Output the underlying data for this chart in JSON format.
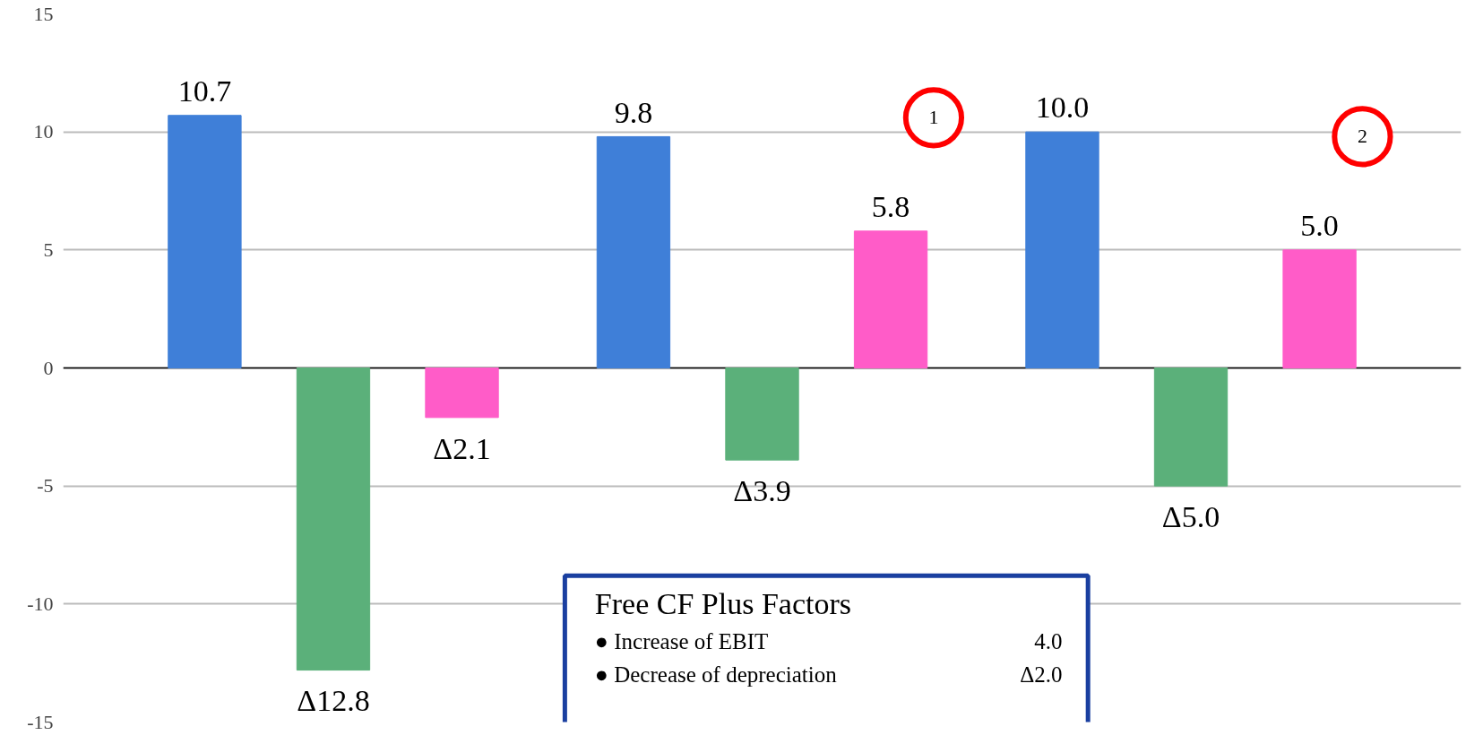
{
  "chart_data": {
    "type": "bar",
    "categories": [
      null,
      null,
      null
    ],
    "series": [
      {
        "color": "#3f7fd8",
        "values": [
          10.7,
          9.8,
          10.0
        ],
        "value_labels": [
          "10.7",
          "9.8",
          "10.0"
        ]
      },
      {
        "color": "#5bb07a",
        "values": [
          -12.8,
          -3.9,
          -5.0
        ],
        "value_labels": [
          "Δ12.8",
          "Δ3.9",
          "Δ5.0"
        ]
      },
      {
        "color": "#ff5cc8",
        "values": [
          -2.1,
          5.8,
          5.0
        ],
        "value_labels": [
          "Δ2.1",
          "5.8",
          "5.0"
        ]
      }
    ],
    "ylim": [
      -15,
      15
    ],
    "yticks": [
      15,
      10,
      5,
      0,
      -5,
      -10,
      -15
    ],
    "grid": "y",
    "tick_labels": "y",
    "annotations": [
      "1",
      "2",
      "Free CF Plus Factors",
      "● Increase of EBIT    4.0",
      "● Decrease of depreciation    Δ2.0"
    ]
  }
}
